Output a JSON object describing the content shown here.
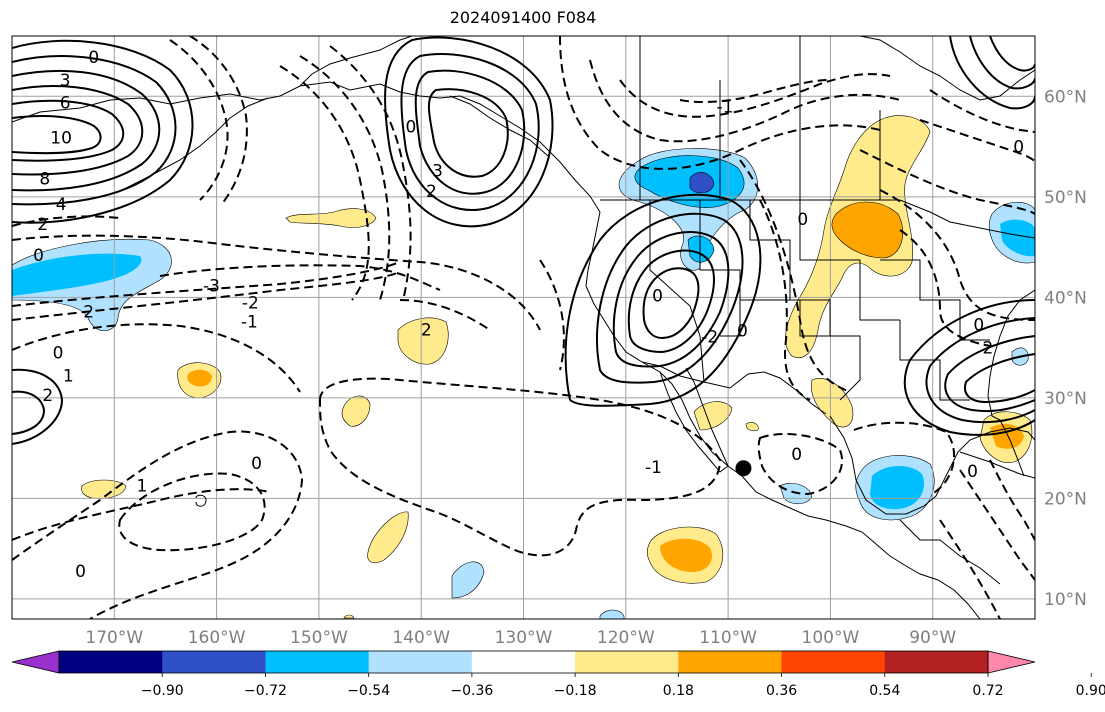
{
  "title": "2024091400 F084",
  "map": {
    "projection": "PlateCarree",
    "lon_range": [
      -180,
      -80
    ],
    "lat_range": [
      8,
      66
    ],
    "grid": true,
    "lon_ticks": [
      {
        "lon": -170,
        "label": "170°W"
      },
      {
        "lon": -160,
        "label": "160°W"
      },
      {
        "lon": -150,
        "label": "150°W"
      },
      {
        "lon": -140,
        "label": "140°W"
      },
      {
        "lon": -130,
        "label": "130°W"
      },
      {
        "lon": -120,
        "label": "120°W"
      },
      {
        "lon": -110,
        "label": "110°W"
      },
      {
        "lon": -100,
        "label": "100°W"
      },
      {
        "lon": -90,
        "label": "90°W"
      }
    ],
    "lat_ticks": [
      {
        "lat": 10,
        "label": "10°N"
      },
      {
        "lat": 20,
        "label": "20°N"
      },
      {
        "lat": 30,
        "label": "30°N"
      },
      {
        "lat": 40,
        "label": "40°N"
      },
      {
        "lat": 50,
        "label": "50°N"
      },
      {
        "lat": 60,
        "label": "60°N"
      }
    ],
    "marker": {
      "lon": -108.5,
      "lat": 23.0,
      "color": "#000000"
    },
    "contour_labels": [
      {
        "text": "0",
        "lon": -172.0,
        "lat": 63.9
      },
      {
        "text": "3",
        "lon": -174.8,
        "lat": 61.6
      },
      {
        "text": "6",
        "lon": -174.8,
        "lat": 59.4
      },
      {
        "text": "10",
        "lon": -175.2,
        "lat": 55.9
      },
      {
        "text": "8",
        "lon": -176.8,
        "lat": 51.8
      },
      {
        "text": "4",
        "lon": -175.2,
        "lat": 49.3
      },
      {
        "text": "2",
        "lon": -177.0,
        "lat": 47.3
      },
      {
        "text": "0",
        "lon": -177.4,
        "lat": 44.2
      },
      {
        "text": "2",
        "lon": -172.5,
        "lat": 38.6
      },
      {
        "text": "0",
        "lon": -175.5,
        "lat": 34.5
      },
      {
        "text": "1",
        "lon": -174.5,
        "lat": 32.2
      },
      {
        "text": "2",
        "lon": -176.5,
        "lat": 30.3
      },
      {
        "text": "-3",
        "lon": -160.5,
        "lat": 41.2
      },
      {
        "text": "-2",
        "lon": -156.7,
        "lat": 39.5
      },
      {
        "text": "-1",
        "lon": -156.8,
        "lat": 37.6
      },
      {
        "text": "2",
        "lon": -139.5,
        "lat": 36.8
      },
      {
        "text": "0",
        "lon": -156.1,
        "lat": 23.5
      },
      {
        "text": "1",
        "lon": -167.3,
        "lat": 21.3
      },
      {
        "text": "0",
        "lon": -173.3,
        "lat": 12.8
      },
      {
        "text": "0",
        "lon": -141.0,
        "lat": 57.0
      },
      {
        "text": "3",
        "lon": -138.4,
        "lat": 52.6
      },
      {
        "text": "2",
        "lon": -139.0,
        "lat": 50.6
      },
      {
        "text": "-1",
        "lon": -110.3,
        "lat": 59.0
      },
      {
        "text": "0",
        "lon": -102.7,
        "lat": 47.8
      },
      {
        "text": "0",
        "lon": -116.9,
        "lat": 40.2
      },
      {
        "text": "-2",
        "lon": -111.8,
        "lat": 36.1
      },
      {
        "text": "0",
        "lon": -108.6,
        "lat": 36.7
      },
      {
        "text": "-1",
        "lon": -117.3,
        "lat": 23.1
      },
      {
        "text": "0",
        "lon": -103.3,
        "lat": 24.4
      },
      {
        "text": "0",
        "lon": -85.5,
        "lat": 37.3
      },
      {
        "text": "2",
        "lon": -84.6,
        "lat": 35.0
      },
      {
        "text": "0",
        "lon": -86.1,
        "lat": 22.7
      },
      {
        "text": "0",
        "lon": -81.6,
        "lat": 55.0
      }
    ]
  },
  "colorbar": {
    "ticks": [
      "−0.90",
      "−0.72",
      "−0.54",
      "−0.36",
      "−0.18",
      "0.18",
      "0.36",
      "0.54",
      "0.72",
      "0.90"
    ],
    "colors": [
      "#9932cc",
      "#000080",
      "#3050c8",
      "#00bfff",
      "#b0e2ff",
      "#ffffff",
      "#ffeb8c",
      "#ffa500",
      "#ff4500",
      "#b22222",
      "#ff88aa"
    ]
  }
}
